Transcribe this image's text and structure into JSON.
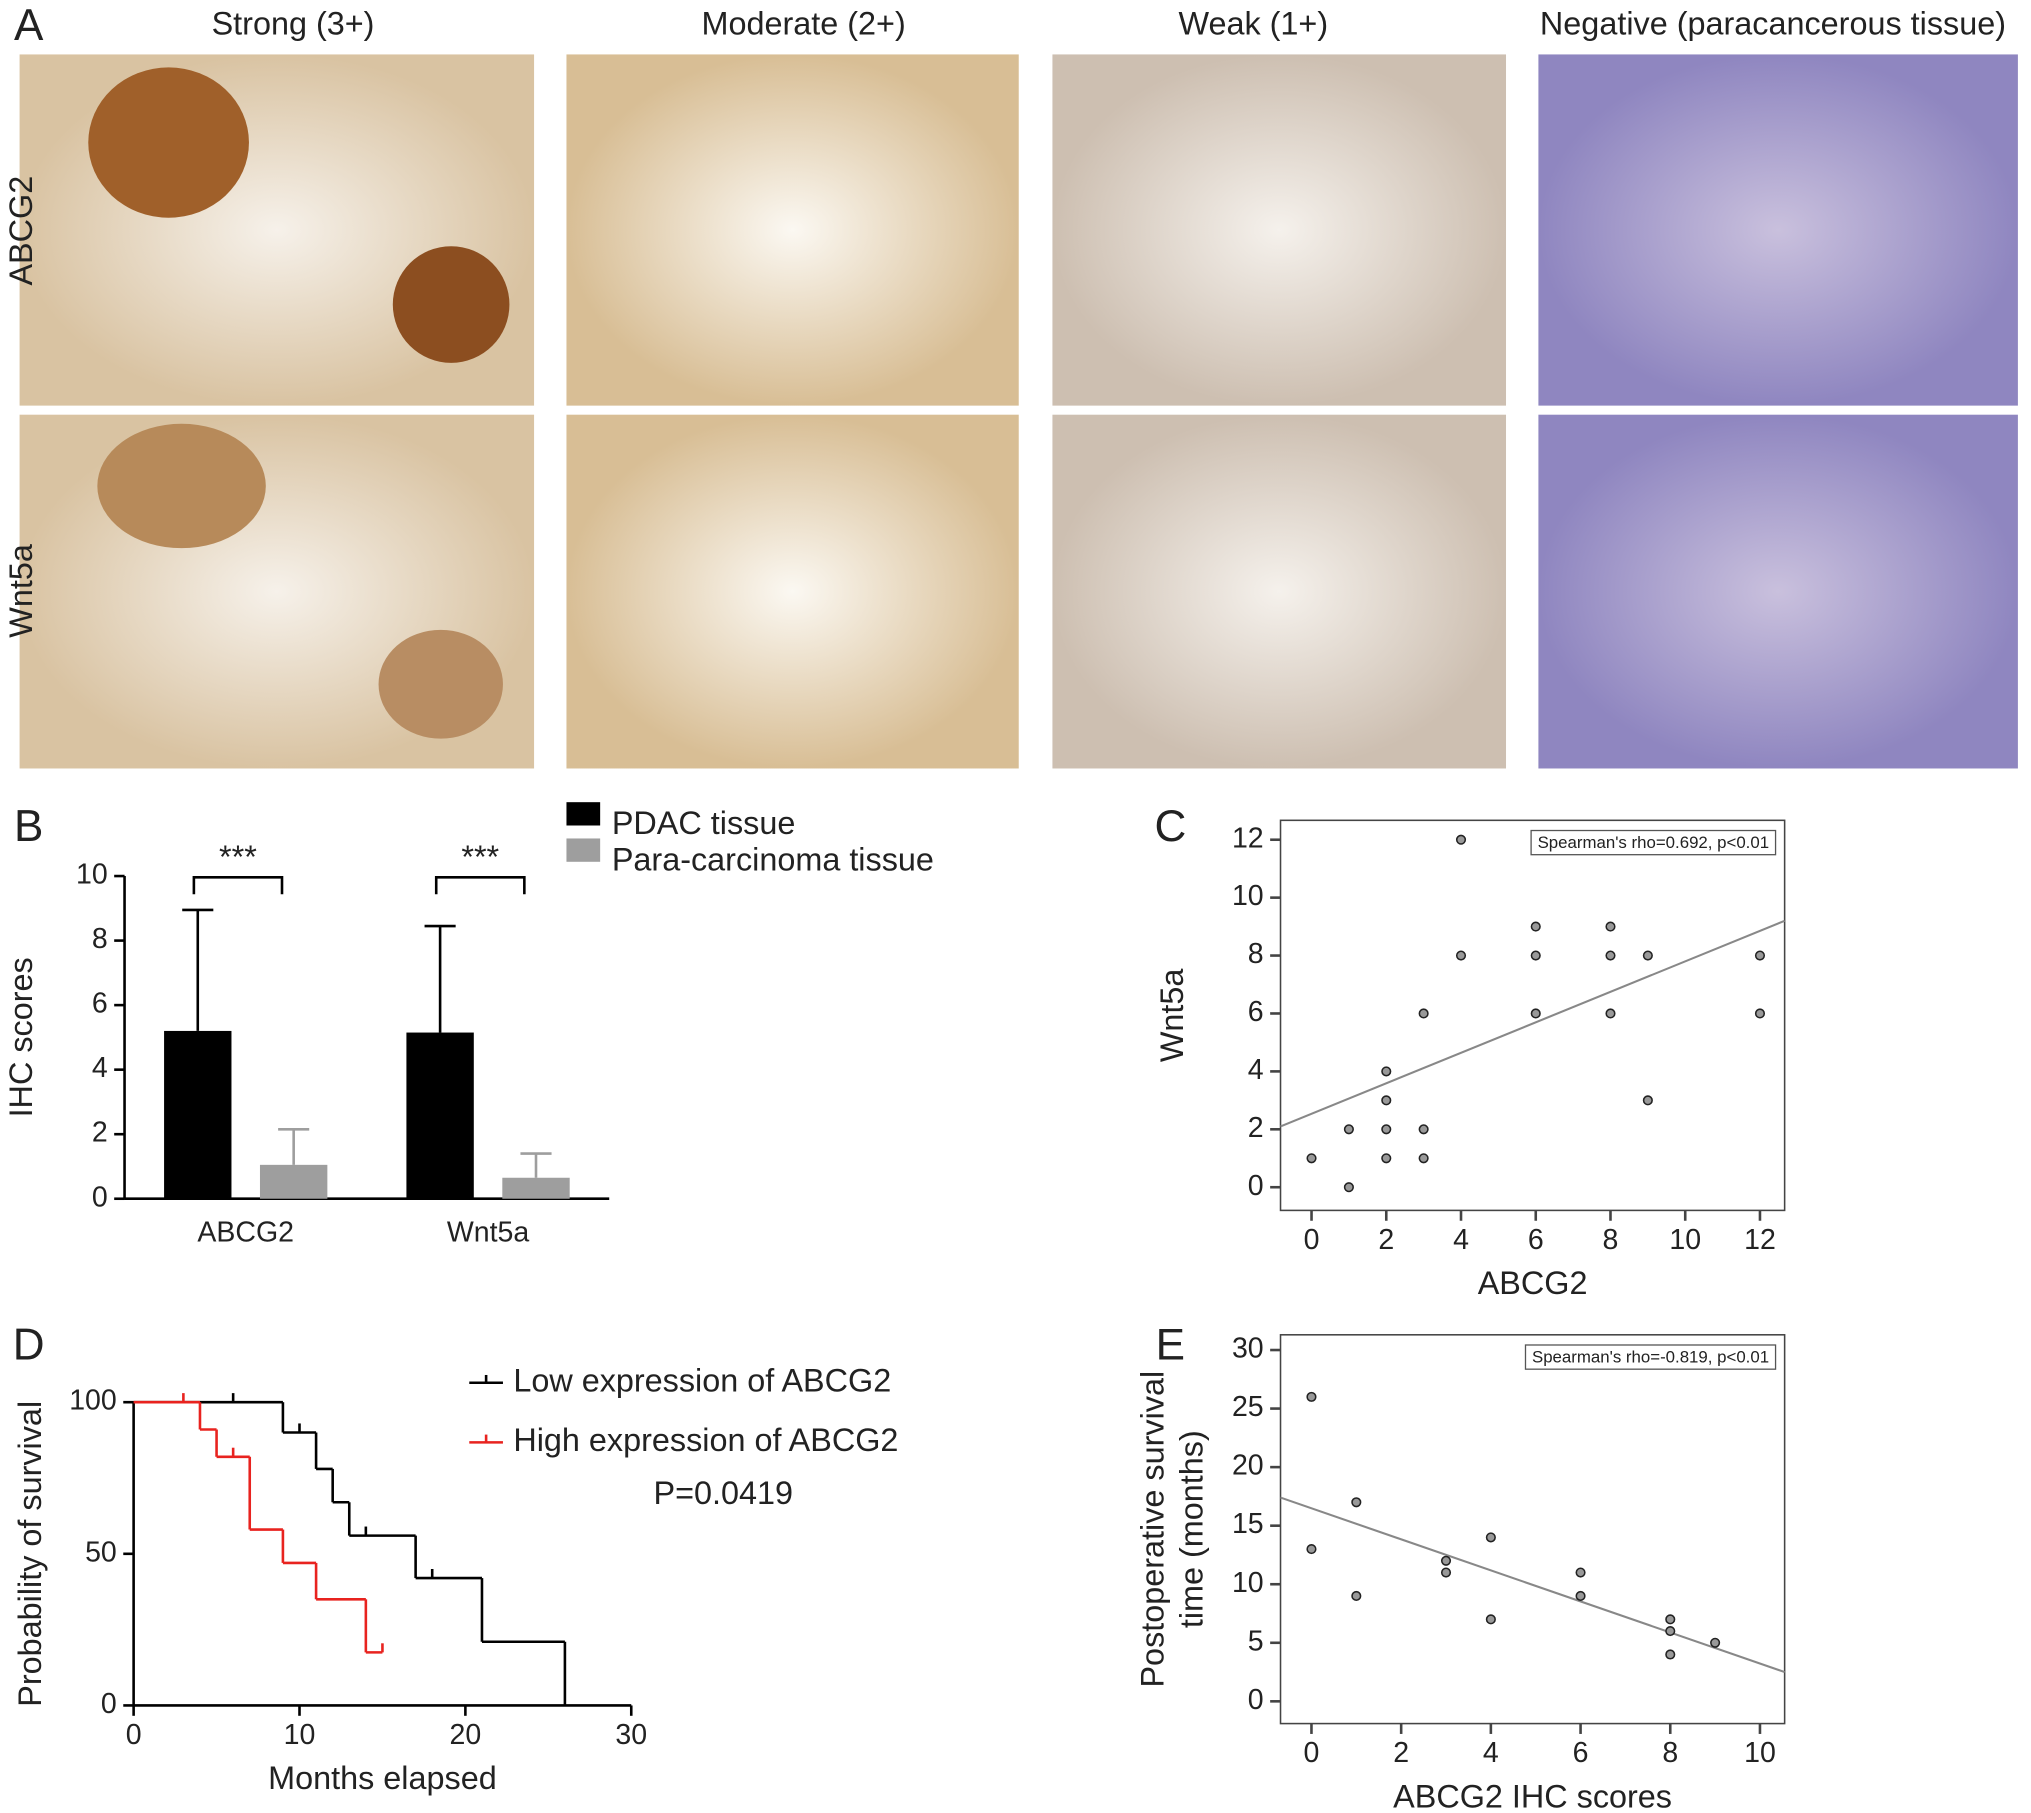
{
  "panel_a": {
    "letter": "A",
    "columns": [
      "Strong (3+)",
      "Moderate (2+)",
      "Weak (1+)",
      "Negative (paracancerous tissue)"
    ],
    "rows": [
      "ABCG2",
      "Wnt5a"
    ]
  },
  "chart_data": [
    {
      "panel": "B",
      "type": "bar",
      "ylabel": "IHC scores",
      "categories": [
        "ABCG2",
        "Wnt5a"
      ],
      "series": [
        {
          "name": "PDAC tissue",
          "color": "#000000",
          "values": [
            5.2,
            5.15
          ],
          "errors": [
            3.75,
            3.3
          ]
        },
        {
          "name": "Para-carcinoma tissue",
          "color": "#9e9e9e",
          "values": [
            1.05,
            0.65
          ],
          "errors": [
            1.1,
            0.75
          ]
        }
      ],
      "annotations": [
        "***",
        "***"
      ],
      "ylim": [
        0,
        10
      ],
      "yticks": [
        0,
        2,
        4,
        6,
        8,
        10
      ]
    },
    {
      "panel": "C",
      "type": "scatter",
      "xlabel": "ABCG2",
      "ylabel": "Wnt5a",
      "annotation": "Spearman's rho=0.692, p<0.01",
      "x": [
        0,
        1,
        1,
        2,
        2,
        2,
        2,
        3,
        3,
        3,
        4,
        4,
        6,
        6,
        6,
        8,
        8,
        8,
        9,
        9,
        12,
        12
      ],
      "values": [
        1,
        2,
        0,
        4,
        3,
        2,
        1,
        6,
        2,
        1,
        12,
        8,
        9,
        8,
        6,
        9,
        8,
        6,
        8,
        3,
        8,
        6
      ],
      "fit_line": {
        "x": [
          -0.83,
          12.66
        ],
        "y": [
          2.1,
          9.2
        ]
      },
      "xlim": [
        -0.83,
        12.66
      ],
      "ylim": [
        -0.8,
        12.67
      ],
      "xticks": [
        0,
        2,
        4,
        6,
        8,
        10,
        12
      ],
      "yticks": [
        0,
        2,
        4,
        6,
        8,
        10,
        12
      ]
    },
    {
      "panel": "D",
      "type": "step",
      "xlabel": "Months elapsed",
      "ylabel": "Probability of survival",
      "annotation": "P=0.0419",
      "series": [
        {
          "name": "Low expression of ABCG2",
          "color": "#000000",
          "x": [
            0,
            9,
            11,
            12,
            13,
            17,
            21,
            26
          ],
          "values": [
            100,
            90,
            78,
            67,
            56,
            42,
            21,
            0
          ],
          "censor_x": [
            6,
            10,
            14,
            18
          ],
          "censor_values": [
            100,
            90,
            56,
            42
          ]
        },
        {
          "name": "High expression of ABCG2",
          "color": "#e8231f",
          "x": [
            0,
            4,
            5,
            7,
            9,
            11,
            14,
            15
          ],
          "values": [
            100,
            91,
            82,
            58,
            47,
            35,
            17.5,
            17.5
          ],
          "censor_x": [
            3,
            6,
            15
          ],
          "censor_values": [
            100,
            82,
            17.5
          ]
        }
      ],
      "xlim": [
        0,
        30
      ],
      "ylim": [
        0,
        100
      ],
      "xticks": [
        0,
        10,
        20,
        30
      ],
      "yticks": [
        0,
        50,
        100
      ]
    },
    {
      "panel": "E",
      "type": "scatter",
      "xlabel": "ABCG2 IHC scores",
      "ylabel": [
        "Postoperative survival",
        "time (months)"
      ],
      "annotation": "Spearman's rho=-0.819, p<0.01",
      "x": [
        0,
        0,
        1,
        1,
        3,
        3,
        4,
        4,
        6,
        6,
        8,
        8,
        8,
        9
      ],
      "values": [
        26,
        13,
        17,
        9,
        12,
        11,
        14,
        7,
        11,
        9,
        7,
        6,
        4,
        5
      ],
      "fit_line": {
        "x": [
          -0.69,
          10.55
        ],
        "y": [
          17.4,
          2.5
        ]
      },
      "xlim": [
        -0.69,
        10.55
      ],
      "ylim": [
        -1.9,
        31.3
      ],
      "xticks": [
        0,
        2,
        4,
        6,
        8,
        10
      ],
      "yticks": [
        0,
        5,
        10,
        15,
        20,
        25,
        30
      ]
    }
  ]
}
